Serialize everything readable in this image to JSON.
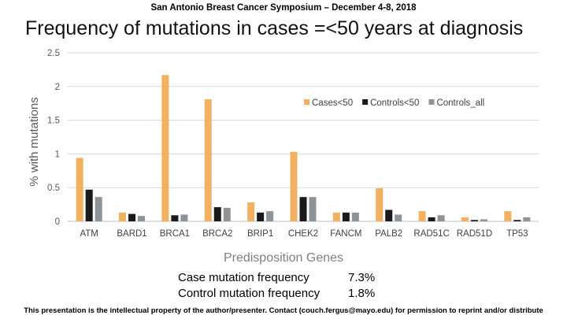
{
  "header": "San Antonio Breast Cancer Symposium – December 4-8, 2018",
  "title": "Frequency of mutations in cases =<50 years at diagnosis",
  "stats": [
    {
      "label": "Case mutation frequency",
      "value": "7.3%"
    },
    {
      "label": "Control mutation frequency",
      "value": "1.8%"
    }
  ],
  "footer": "This presentation is the intellectual property of the author/presenter.  Contact (couch.fergus@mayo.edu) for permission to reprint and/or distribute",
  "chart_data": {
    "type": "bar",
    "xlabel": "Predisposition Genes",
    "ylabel": "% with mutations",
    "ylim": [
      0,
      2.5
    ],
    "yticks": [
      "0",
      "0.5",
      "1",
      "1.5",
      "2",
      "2.5"
    ],
    "grid": true,
    "legend_position": "right",
    "categories": [
      "ATM",
      "BARD1",
      "BRCA1",
      "BRCA2",
      "BRIP1",
      "CHEK2",
      "FANCM",
      "PALB2",
      "RAD51C",
      "RAD51D",
      "TP53"
    ],
    "series": [
      {
        "name": "Cases<50",
        "color": "#F2B061",
        "values": [
          0.94,
          0.13,
          2.17,
          1.81,
          0.28,
          1.03,
          0.13,
          0.49,
          0.15,
          0.06,
          0.15
        ]
      },
      {
        "name": "Controls<50",
        "color": "#1a1a1a",
        "values": [
          0.47,
          0.11,
          0.09,
          0.21,
          0.13,
          0.36,
          0.13,
          0.17,
          0.06,
          0.02,
          0.02
        ]
      },
      {
        "name": "Controls_all",
        "color": "#8C9399",
        "values": [
          0.36,
          0.08,
          0.1,
          0.2,
          0.15,
          0.36,
          0.13,
          0.1,
          0.09,
          0.03,
          0.06
        ]
      }
    ]
  }
}
